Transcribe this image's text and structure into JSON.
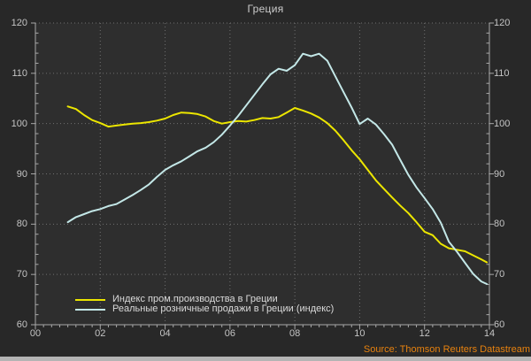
{
  "chart_data": {
    "type": "line",
    "title": "Греция",
    "xlabel": "",
    "ylabel": "",
    "xlim": [
      2000,
      2014
    ],
    "ylim": [
      60,
      120
    ],
    "grid": true,
    "legend_position": "bottom-left",
    "source": "Source: Thomson Reuters Datastream",
    "x_tick_labels": [
      "00",
      "02",
      "04",
      "06",
      "08",
      "10",
      "12",
      "14"
    ],
    "y_ticks": [
      60,
      70,
      80,
      90,
      100,
      110,
      120
    ],
    "y_tick_labels": [
      "60",
      "70",
      "80",
      "90",
      "100",
      "110",
      "120"
    ],
    "x": [
      2001,
      2001.25,
      2001.5,
      2001.75,
      2002,
      2002.25,
      2002.5,
      2002.75,
      2003,
      2003.25,
      2003.5,
      2003.75,
      2004,
      2004.25,
      2004.5,
      2004.75,
      2005,
      2005.25,
      2005.5,
      2005.75,
      2006,
      2006.25,
      2006.5,
      2006.75,
      2007,
      2007.25,
      2007.5,
      2007.75,
      2008,
      2008.25,
      2008.5,
      2008.75,
      2009,
      2009.25,
      2009.5,
      2009.75,
      2010,
      2010.25,
      2010.5,
      2010.75,
      2011,
      2011.25,
      2011.5,
      2011.75,
      2012,
      2012.25,
      2012.5,
      2012.75,
      2013,
      2013.25,
      2013.5,
      2013.75,
      2013.92
    ],
    "series": [
      {
        "name": "Индекс пром.производства в Греции",
        "color": "#ece600",
        "values": [
          103.4,
          102.9,
          101.7,
          100.7,
          100.1,
          99.4,
          99.6,
          99.8,
          100.0,
          100.1,
          100.3,
          100.6,
          101.0,
          101.7,
          102.2,
          102.1,
          101.9,
          101.4,
          100.5,
          100.0,
          100.3,
          100.5,
          100.4,
          100.7,
          101.1,
          101.0,
          101.3,
          102.2,
          103.1,
          102.6,
          102.0,
          101.2,
          100.1,
          98.6,
          96.7,
          94.7,
          92.9,
          90.8,
          88.7,
          87.0,
          85.3,
          83.7,
          82.2,
          80.4,
          78.5,
          77.8,
          76.1,
          75.2,
          74.9,
          74.6,
          73.8,
          73.0,
          72.4
        ]
      },
      {
        "name": "Реальные розничные продажи в Греции (индекс)",
        "color": "#c3e7e7",
        "values": [
          80.4,
          81.4,
          82.0,
          82.6,
          83.0,
          83.6,
          84.0,
          84.9,
          85.8,
          86.8,
          87.9,
          89.4,
          90.8,
          91.7,
          92.5,
          93.5,
          94.5,
          95.2,
          96.3,
          97.8,
          99.6,
          101.5,
          103.6,
          105.7,
          107.8,
          109.8,
          110.9,
          110.5,
          111.6,
          113.9,
          113.4,
          113.9,
          112.5,
          109.4,
          106.3,
          103.2,
          99.9,
          101.0,
          99.8,
          97.9,
          95.8,
          92.8,
          89.8,
          87.3,
          85.2,
          83.0,
          80.3,
          76.5,
          74.5,
          72.3,
          70.1,
          68.6,
          68.1
        ]
      }
    ]
  },
  "colors": {
    "background": "#282828",
    "plot_background": "#2e2e2e",
    "frame": "#a8a8a8",
    "grid": "#707070",
    "axis_text": "#c4c4c4",
    "title_text": "#cdcdcd",
    "legend_text": "#dadada",
    "source_text": "#e8820e",
    "bottom_strip": "#b4b4b4",
    "series_industrial": "#ece600",
    "series_retail": "#c3e7e7"
  }
}
